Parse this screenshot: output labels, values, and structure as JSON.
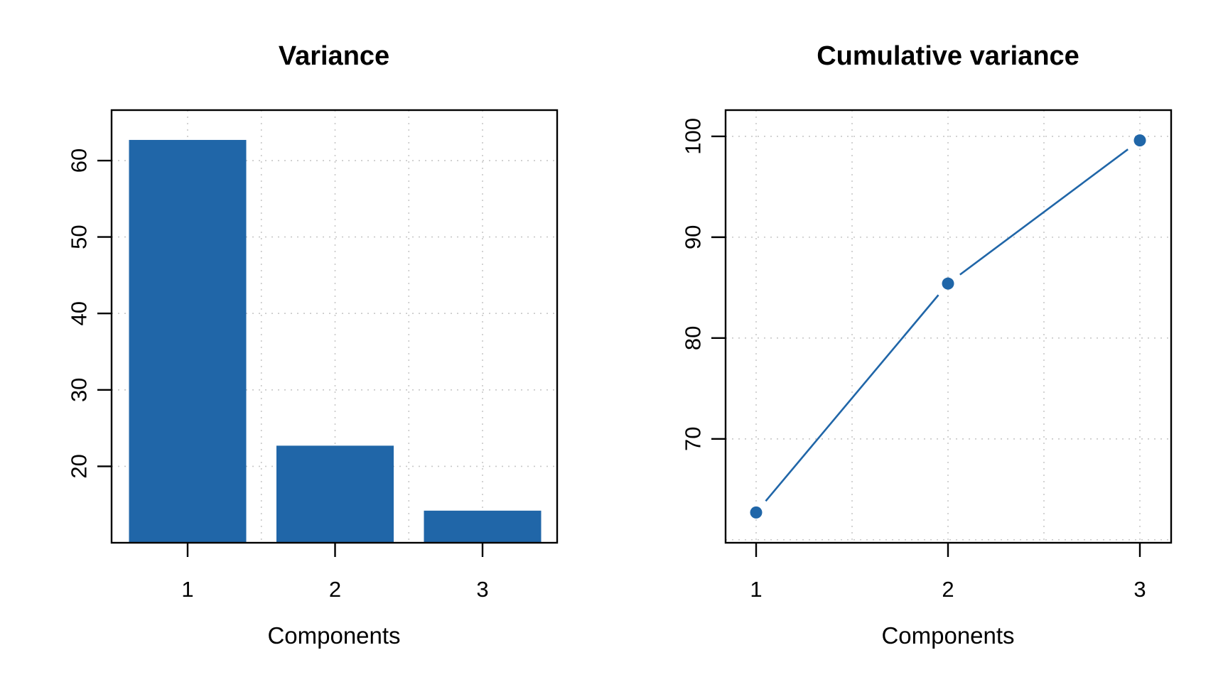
{
  "figure": {
    "background": "#ffffff",
    "panels": [
      "Variance",
      "Cumulative variance"
    ]
  },
  "styles": {
    "series_color": "#2066a8",
    "axis_color": "#000000",
    "grid_color": "#c8c8c8",
    "text_color": "#000000"
  },
  "chart_data": [
    {
      "type": "bar",
      "title": "Variance",
      "xlabel": "Components",
      "ylabel": "",
      "categories": [
        "1",
        "2",
        "3"
      ],
      "values": [
        62.7,
        22.7,
        14.2
      ],
      "y_ticks": [
        20,
        30,
        40,
        50,
        60
      ],
      "ylim": [
        10.0,
        66.6
      ],
      "grid": true,
      "grid_style": "dotted",
      "legend": "none",
      "bar_color": "#2066a8"
    },
    {
      "type": "line",
      "title": "Cumulative variance",
      "xlabel": "Components",
      "ylabel": "",
      "x": [
        1,
        2,
        3
      ],
      "x_tick_labels": [
        "1",
        "2",
        "3"
      ],
      "values": [
        62.7,
        85.4,
        99.6
      ],
      "y_ticks": [
        70,
        80,
        90,
        100
      ],
      "y_gridlines": [
        60,
        70,
        80,
        90,
        100
      ],
      "ylim": [
        59.7,
        102.6
      ],
      "grid": true,
      "grid_style": "dotted",
      "legend": "none",
      "line_color": "#2066a8",
      "marker": "filled-circle"
    }
  ]
}
